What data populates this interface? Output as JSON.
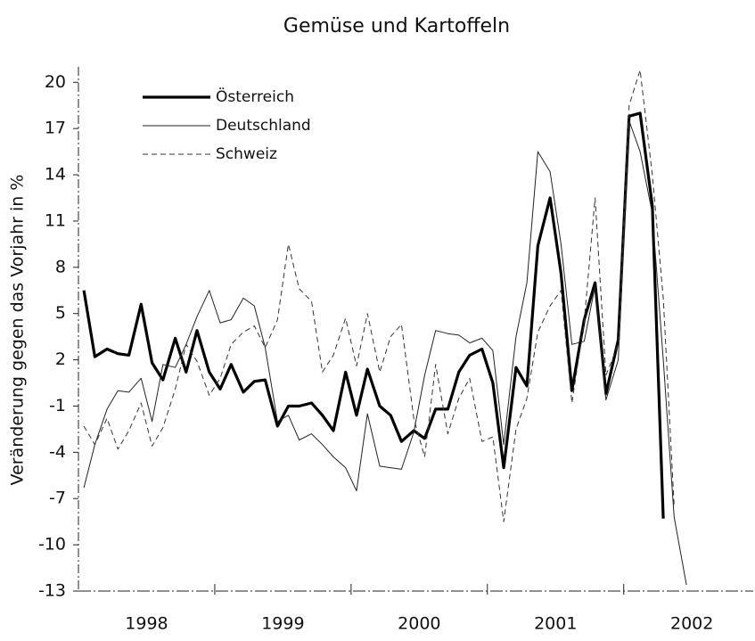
{
  "chart_data": {
    "type": "line",
    "title": "Gemüse und Kartoffeln",
    "ylabel": "Veränderung gegen das Vorjahr in %",
    "xlim": [
      1998.0,
      2002.95
    ],
    "xticks": [
      {
        "value": 1998.5,
        "label": "1998"
      },
      {
        "value": 1999.5,
        "label": "1999"
      },
      {
        "value": 2000.5,
        "label": "2000"
      },
      {
        "value": 2001.5,
        "label": "2001"
      },
      {
        "value": 2002.5,
        "label": "2002"
      }
    ],
    "xticks_minor": [
      1999,
      2000,
      2001,
      2002
    ],
    "ylim": [
      -13,
      21
    ],
    "yticks": [
      -13,
      -10,
      -7,
      -4,
      -1,
      2,
      5,
      8,
      11,
      14,
      17,
      20
    ],
    "legend": "upper left",
    "x": [
      1998.04,
      1998.12,
      1998.21,
      1998.29,
      1998.37,
      1998.46,
      1998.54,
      1998.62,
      1998.71,
      1998.79,
      1998.87,
      1998.96,
      1999.04,
      1999.12,
      1999.21,
      1999.29,
      1999.37,
      1999.46,
      1999.54,
      1999.62,
      1999.71,
      1999.79,
      1999.87,
      1999.96,
      2000.04,
      2000.12,
      2000.21,
      2000.29,
      2000.37,
      2000.46,
      2000.54,
      2000.62,
      2000.71,
      2000.79,
      2000.87,
      2000.96,
      2001.04,
      2001.12,
      2001.21,
      2001.29,
      2001.37,
      2001.46,
      2001.54,
      2001.62,
      2001.71,
      2001.79,
      2001.87,
      2001.96,
      2002.04,
      2002.12,
      2002.21,
      2002.29,
      2002.37,
      2002.46
    ],
    "series": [
      {
        "name": "Österreich",
        "color": "#000000",
        "width": 3.2,
        "dash": "none",
        "values": [
          6.5,
          2.2,
          2.7,
          2.4,
          2.3,
          5.6,
          1.8,
          0.7,
          3.4,
          1.2,
          3.9,
          1.2,
          0.1,
          1.7,
          -0.1,
          0.6,
          0.7,
          -2.3,
          -1.0,
          -1.0,
          -0.8,
          -1.6,
          -2.6,
          1.2,
          -1.6,
          1.4,
          -1.0,
          -1.6,
          -3.3,
          -2.6,
          -3.1,
          -1.2,
          -1.2,
          1.2,
          2.3,
          2.7,
          0.5,
          -5.0,
          1.5,
          0.3,
          9.4,
          12.5,
          7.6,
          0.0,
          4.6,
          7.0,
          -0.2,
          3.3,
          17.8,
          18.0,
          12.0,
          -8.3,
          null,
          null
        ]
      },
      {
        "name": "Deutschland",
        "color": "#222222",
        "width": 1,
        "dash": "none",
        "values": [
          -6.3,
          -3.5,
          -1.2,
          0.0,
          -0.1,
          0.8,
          -2.0,
          1.7,
          1.5,
          3.0,
          4.8,
          6.5,
          4.4,
          4.6,
          6.0,
          5.5,
          2.8,
          -2.0,
          -1.6,
          -3.2,
          -2.8,
          -3.5,
          -4.3,
          -5.0,
          -6.5,
          -1.5,
          -4.9,
          -5.0,
          -5.1,
          -2.7,
          1.0,
          3.9,
          3.7,
          3.6,
          3.1,
          3.4,
          2.6,
          -3.5,
          3.5,
          7.0,
          15.5,
          14.2,
          9.5,
          3.0,
          3.2,
          6.8,
          -0.6,
          2.0,
          17.5,
          15.5,
          11.5,
          2.0,
          -8.2,
          -12.6
        ]
      },
      {
        "name": "Schweiz",
        "color": "#333333",
        "width": 1,
        "dash": "6 4",
        "values": [
          -2.3,
          -3.5,
          -1.8,
          -3.8,
          -2.6,
          -0.8,
          -3.6,
          -2.4,
          0.1,
          3.0,
          1.9,
          -0.3,
          0.8,
          3.0,
          3.8,
          4.2,
          2.8,
          4.6,
          9.5,
          6.6,
          5.8,
          1.2,
          2.3,
          4.7,
          1.6,
          5.0,
          1.2,
          3.5,
          4.3,
          -1.8,
          -4.3,
          1.7,
          -2.8,
          -0.5,
          0.8,
          -3.3,
          -3.0,
          -8.5,
          -2.5,
          -0.5,
          3.8,
          5.5,
          6.5,
          -0.8,
          4.5,
          12.5,
          1.0,
          3.0,
          18.5,
          20.8,
          14.0,
          6.0,
          -7.5,
          null
        ]
      }
    ]
  }
}
